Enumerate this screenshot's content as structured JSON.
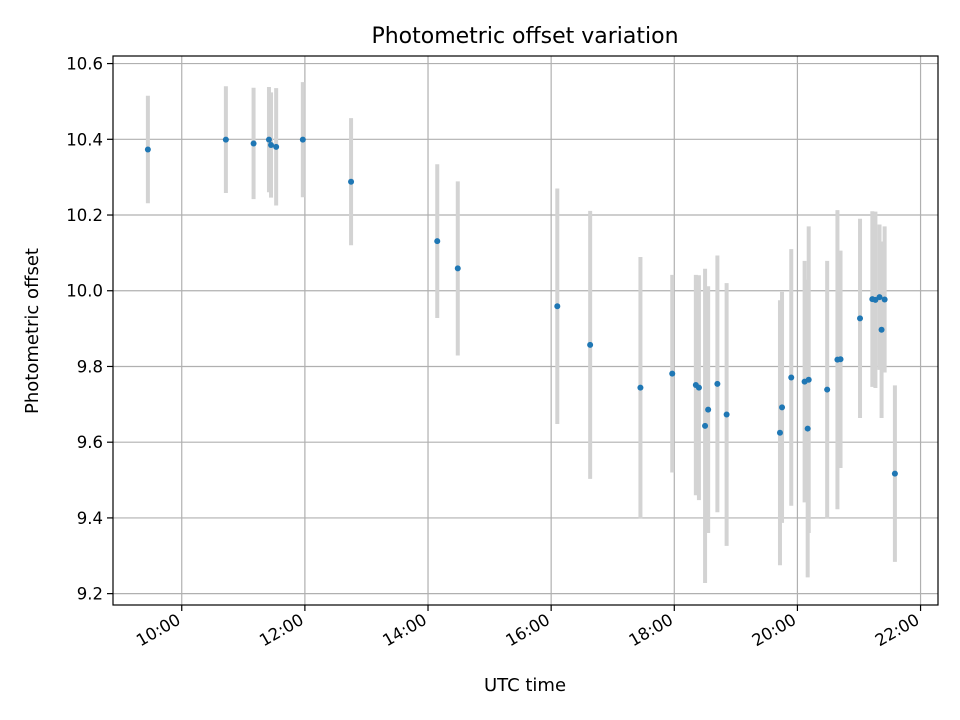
{
  "chart_data": {
    "type": "scatter",
    "title": "Photometric offset variation",
    "xlabel": "UTC time",
    "ylabel": "Photometric offset",
    "x_tick_labels": [
      "10:00",
      "12:00",
      "14:00",
      "16:00",
      "18:00",
      "20:00",
      "22:00"
    ],
    "y_tick_labels": [
      "9.2",
      "9.4",
      "9.6",
      "9.8",
      "10.0",
      "10.2",
      "10.4",
      "10.6"
    ],
    "xlim": [
      "08:53",
      "22:17"
    ],
    "ylim": [
      9.17,
      10.62
    ],
    "grid": true,
    "colors": {
      "marker": "#1f77b4",
      "errorbar": "#d3d3d3",
      "grid": "#b0b0b0",
      "axes": "#000000"
    },
    "series": [
      {
        "points": [
          {
            "x": "09:27",
            "y": 10.373,
            "yerr": 0.142
          },
          {
            "x": "10:43",
            "y": 10.399,
            "yerr": 0.141
          },
          {
            "x": "11:10",
            "y": 10.389,
            "yerr": 0.147
          },
          {
            "x": "11:25",
            "y": 10.399,
            "yerr": 0.139
          },
          {
            "x": "11:27",
            "y": 10.385,
            "yerr": 0.139
          },
          {
            "x": "11:32",
            "y": 10.38,
            "yerr": 0.155
          },
          {
            "x": "11:58",
            "y": 10.399,
            "yerr": 0.152
          },
          {
            "x": "12:45",
            "y": 10.288,
            "yerr": 0.168
          },
          {
            "x": "14:09",
            "y": 10.131,
            "yerr": 0.203
          },
          {
            "x": "14:29",
            "y": 10.059,
            "yerr": 0.23
          },
          {
            "x": "16:06",
            "y": 9.959,
            "yerr": 0.311
          },
          {
            "x": "16:38",
            "y": 9.857,
            "yerr": 0.354
          },
          {
            "x": "17:27",
            "y": 9.744,
            "yerr": 0.345
          },
          {
            "x": "17:58",
            "y": 9.781,
            "yerr": 0.261
          },
          {
            "x": "18:21",
            "y": 9.751,
            "yerr": 0.291
          },
          {
            "x": "18:24",
            "y": 9.744,
            "yerr": 0.297
          },
          {
            "x": "18:30",
            "y": 9.643,
            "yerr": 0.415
          },
          {
            "x": "18:33",
            "y": 9.686,
            "yerr": 0.326
          },
          {
            "x": "18:42",
            "y": 9.754,
            "yerr": 0.339
          },
          {
            "x": "18:51",
            "y": 9.673,
            "yerr": 0.347
          },
          {
            "x": "19:43",
            "y": 9.625,
            "yerr": 0.35
          },
          {
            "x": "19:45",
            "y": 9.692,
            "yerr": 0.305
          },
          {
            "x": "19:54",
            "y": 9.771,
            "yerr": 0.339
          },
          {
            "x": "20:07",
            "y": 9.76,
            "yerr": 0.319
          },
          {
            "x": "20:10",
            "y": 9.636,
            "yerr": 0.393
          },
          {
            "x": "20:11",
            "y": 9.765,
            "yerr": 0.405
          },
          {
            "x": "20:29",
            "y": 9.739,
            "yerr": 0.34
          },
          {
            "x": "20:39",
            "y": 9.818,
            "yerr": 0.395
          },
          {
            "x": "20:42",
            "y": 9.819,
            "yerr": 0.287
          },
          {
            "x": "21:01",
            "y": 9.927,
            "yerr": 0.263
          },
          {
            "x": "21:13",
            "y": 9.978,
            "yerr": 0.232
          },
          {
            "x": "21:16",
            "y": 9.976,
            "yerr": 0.233
          },
          {
            "x": "21:20",
            "y": 9.983,
            "yerr": 0.192
          },
          {
            "x": "21:22",
            "y": 9.897,
            "yerr": 0.233
          },
          {
            "x": "21:25",
            "y": 9.977,
            "yerr": 0.193
          },
          {
            "x": "21:35",
            "y": 9.517,
            "yerr": 0.233
          }
        ]
      }
    ]
  }
}
